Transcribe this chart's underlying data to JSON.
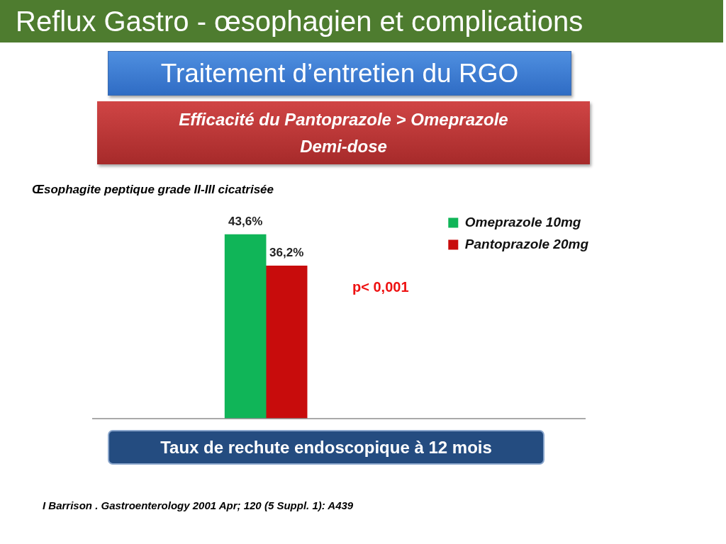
{
  "chart_data": {
    "type": "bar",
    "title": "Reflux Gastro - œsophagien et complications",
    "subtitle": "Traitement d’entretien du RGO",
    "annotations": [
      "Efficacité du Pantoprazole > Omeprazole Demi-dose",
      "Œsophagite peptique grade II-III cicatrisée",
      "p< 0,001",
      "I Barrison . Gastroenterology 2001 Apr; 120 (5 Suppl. 1): A439"
    ],
    "xlabel": "Taux de rechute endoscopique à 12 mois",
    "categories": [
      null
    ],
    "series": [
      {
        "name": "Omeprazole 10mg",
        "color": "#10b558",
        "values": [
          43.6
        ],
        "value_labels": [
          "43,6%"
        ]
      },
      {
        "name": "Pantoprazole 20mg",
        "color": "#c80c0c",
        "values": [
          36.2
        ],
        "value_labels": [
          "36,2%"
        ]
      }
    ],
    "legend": "top right",
    "tick_labels": false
  }
}
